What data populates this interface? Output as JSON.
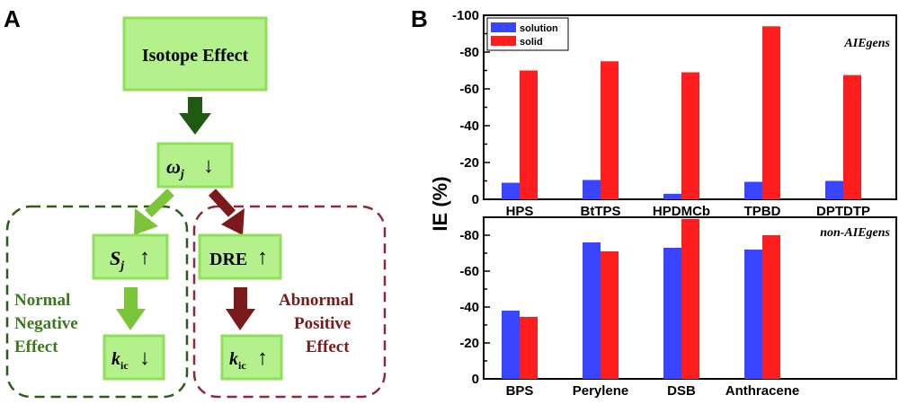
{
  "panel_a": {
    "letter": "A",
    "isotope_effect": "Isotope Effect",
    "omega": "ω",
    "omega_sub": "j",
    "s": "S",
    "s_sub": "j",
    "dre": "DRE",
    "k": "k",
    "k_sub": "ic",
    "arrow_down": "↓",
    "arrow_up": "↑",
    "normal_lines": [
      "Normal",
      "Negative",
      "Effect"
    ],
    "abnormal_lines": [
      "Abnormal",
      "Positive",
      "Effect"
    ],
    "colors": {
      "box_fill": "#b4f08c",
      "box_stroke": "#8ee05a",
      "dark_green": "#1f5a12",
      "light_green": "#7cc43a",
      "dark_red": "#7a1a1a",
      "green_dash": "#2f5a1a",
      "red_dash": "#8a2a3a"
    }
  },
  "chart_data": {
    "panel_letter": "B",
    "type": "bar",
    "ylabel": "IE (%)",
    "legend": {
      "placement": "top-left",
      "entries": [
        "solution",
        "solid"
      ]
    },
    "colors": {
      "solution": "#3a45ff",
      "solid": "#ff1e1e"
    },
    "panels": [
      {
        "title": "AIEgens",
        "categories": [
          "HPS",
          "BtTPS",
          "HPDMCb",
          "TPBD",
          "DPTDTP"
        ],
        "series": [
          {
            "name": "solution",
            "values": [
              -9,
              -10.5,
              -3,
              -9.5,
              -10
            ]
          },
          {
            "name": "solid",
            "values": [
              -70,
              -75,
              -69,
              -94,
              -67.5
            ]
          }
        ],
        "ylim": [
          0,
          -100
        ],
        "ticks": [
          0,
          -20,
          -40,
          -60,
          -80,
          -100
        ],
        "tick_labels": [
          "0",
          "-20",
          "-40",
          "-60",
          "-80",
          "-100"
        ]
      },
      {
        "title": "non-AIEgens",
        "categories": [
          "BPS",
          "Perylene",
          "DSB",
          "Anthracene"
        ],
        "series": [
          {
            "name": "solution",
            "values": [
              -38,
              -76,
              -73,
              -72
            ]
          },
          {
            "name": "solid",
            "values": [
              -34.5,
              -71,
              -89,
              -80
            ]
          }
        ],
        "ylim": [
          0,
          -90
        ],
        "ticks": [
          0,
          -20,
          -40,
          -60,
          -80
        ],
        "tick_labels": [
          "0",
          "-20",
          "-40",
          "-60",
          "-80"
        ]
      }
    ]
  }
}
